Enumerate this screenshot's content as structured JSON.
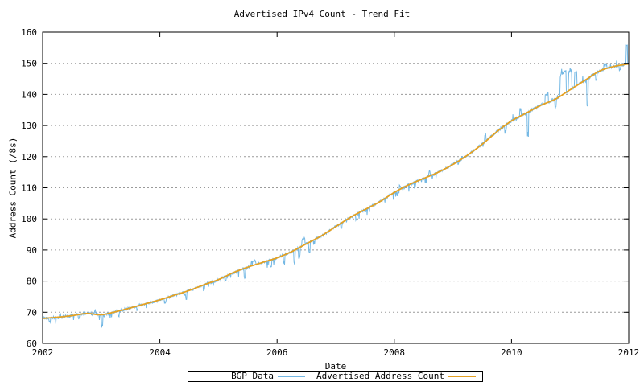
{
  "title": "Advertised IPv4 Count - Trend Fit",
  "axes": {
    "x_label": "Date",
    "y_label": "Address Count (/8s)"
  },
  "colors": {
    "bgp_data": "#74b8e4",
    "trend": "#e5a122",
    "grid": "#9a9a9a",
    "border": "#000000"
  },
  "legend": {
    "entries": [
      {
        "label": "BGP Data",
        "color": "#74b8e4"
      },
      {
        "label": "Advertised Address Count",
        "color": "#e5a122"
      }
    ]
  },
  "chart_data": {
    "type": "line",
    "title": "Advertised IPv4 Count - Trend Fit",
    "xlabel": "Date",
    "ylabel": "Address Count (/8s)",
    "xlim": [
      2002,
      2012
    ],
    "ylim": [
      60,
      160
    ],
    "xticks": [
      2002,
      2004,
      2006,
      2008,
      2010,
      2012
    ],
    "yticks": [
      60,
      70,
      80,
      90,
      100,
      110,
      120,
      130,
      140,
      150,
      160
    ],
    "grid": "horizontal-dashed",
    "legend_position": "bottom-center-outside",
    "series": [
      {
        "name": "BGP Data",
        "color": "#74b8e4",
        "style": "noisy-line",
        "note": "daily advertised IPv4 address count; follows trend series with short vertical excursions",
        "noise": {
          "seed": 987654321,
          "sample_step_years": 0.008,
          "jitter_amplitude": 0.9,
          "dip_probability": 0.06,
          "spikes": [
            {
              "x": 2002.12,
              "dv": -1.3
            },
            {
              "x": 2002.3,
              "dv": 0.9
            },
            {
              "x": 2002.62,
              "dv": -1.2
            },
            {
              "x": 2002.9,
              "dv": 1.0
            },
            {
              "x": 2003.02,
              "dv": -3.4
            },
            {
              "x": 2003.3,
              "dv": -1.5
            },
            {
              "x": 2003.62,
              "dv": -1.2
            },
            {
              "x": 2004.1,
              "dv": -1.4
            },
            {
              "x": 2004.45,
              "dv": -1.2
            },
            {
              "x": 2004.75,
              "dv": -2.0
            },
            {
              "x": 2005.12,
              "dv": -1.6
            },
            {
              "x": 2005.45,
              "dv": -3.0
            },
            {
              "x": 2005.6,
              "dv": 1.5,
              "w": 0.04
            },
            {
              "x": 2005.9,
              "dv": -2.2
            },
            {
              "x": 2006.12,
              "dv": -2.6
            },
            {
              "x": 2006.3,
              "dv": -4.0
            },
            {
              "x": 2006.38,
              "dv": -3.2
            },
            {
              "x": 2006.45,
              "dv": 2.0,
              "w": 0.03
            },
            {
              "x": 2006.55,
              "dv": -3.0
            },
            {
              "x": 2007.1,
              "dv": -1.5
            },
            {
              "x": 2007.35,
              "dv": -2.0
            },
            {
              "x": 2008.1,
              "dv": 1.2
            },
            {
              "x": 2008.35,
              "dv": -1.6
            },
            {
              "x": 2008.6,
              "dv": 1.5
            },
            {
              "x": 2009.1,
              "dv": -1.2
            },
            {
              "x": 2009.55,
              "dv": 2.0
            },
            {
              "x": 2009.9,
              "dv": -2.0
            },
            {
              "x": 2010.15,
              "dv": 2.2
            },
            {
              "x": 2010.28,
              "dv": -8.0
            },
            {
              "x": 2010.6,
              "dv": 3.0,
              "w": 0.03
            },
            {
              "x": 2010.75,
              "dv": -3.0
            },
            {
              "x": 2010.88,
              "dv": 7.0,
              "w": 0.05
            },
            {
              "x": 2011.0,
              "dv": 6.0,
              "w": 0.03
            },
            {
              "x": 2011.1,
              "dv": 4.5,
              "w": 0.02
            },
            {
              "x": 2011.3,
              "dv": -8.5
            },
            {
              "x": 2011.45,
              "dv": -2.0
            },
            {
              "x": 2011.6,
              "dv": 1.2,
              "w": 0.03
            },
            {
              "x": 2011.85,
              "dv": -1.5
            },
            {
              "x": 2011.97,
              "dv": 5.8,
              "w": 0.012
            }
          ]
        }
      },
      {
        "name": "Advertised Address Count",
        "color": "#e5a122",
        "style": "smooth-line",
        "x": [
          2002.0,
          2002.25,
          2002.5,
          2002.75,
          2003.0,
          2003.25,
          2003.5,
          2003.75,
          2004.0,
          2004.25,
          2004.5,
          2004.75,
          2005.0,
          2005.25,
          2005.5,
          2005.75,
          2006.0,
          2006.25,
          2006.5,
          2006.75,
          2007.0,
          2007.25,
          2007.5,
          2007.75,
          2008.0,
          2008.25,
          2008.5,
          2008.75,
          2009.0,
          2009.25,
          2009.5,
          2009.75,
          2010.0,
          2010.25,
          2010.5,
          2010.75,
          2011.0,
          2011.25,
          2011.5,
          2011.75,
          2012.0
        ],
        "y": [
          68.0,
          68.4,
          68.9,
          69.6,
          69.2,
          70.2,
          71.4,
          72.7,
          74.0,
          75.5,
          77.0,
          78.8,
          80.5,
          82.7,
          84.5,
          86.0,
          87.5,
          89.5,
          92.0,
          94.5,
          97.5,
          100.5,
          103.0,
          105.5,
          108.5,
          111.0,
          113.0,
          115.0,
          117.5,
          120.5,
          124.0,
          128.0,
          131.5,
          134.0,
          136.5,
          138.5,
          141.5,
          144.5,
          147.5,
          149.0,
          149.8
        ]
      }
    ]
  }
}
